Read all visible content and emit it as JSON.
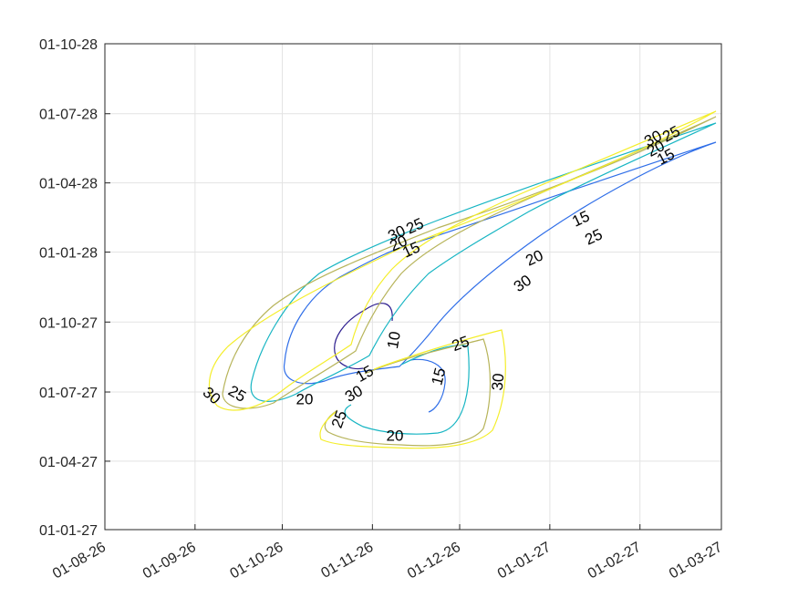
{
  "chart_data": {
    "type": "contour",
    "title": "",
    "xlabel": "",
    "ylabel": "",
    "grid": true,
    "legend": "none",
    "x_ticks": [
      "01-08-26",
      "01-09-26",
      "01-10-26",
      "01-11-26",
      "01-12-26",
      "01-01-27",
      "01-02-27",
      "01-03-27"
    ],
    "y_ticks": [
      "01-01-27",
      "01-04-27",
      "01-07-27",
      "01-10-27",
      "01-01-28",
      "01-04-28",
      "01-07-28",
      "01-10-28"
    ],
    "xlim": [
      "01-08-26",
      "01-03-27"
    ],
    "ylim": [
      "01-01-27",
      "01-10-28"
    ],
    "levels": [
      {
        "value": 10,
        "color": "#2d1e8f"
      },
      {
        "value": 15,
        "color": "#2f6ee8"
      },
      {
        "value": 20,
        "color": "#17b5c3"
      },
      {
        "value": 25,
        "color": "#b7b45a"
      },
      {
        "value": 30,
        "color": "#f4ee2a"
      }
    ],
    "contours": [
      {
        "level": 10,
        "lines": [
          [
            [
              "01-11-26",
              "01-10-27"
            ],
            [
              "01-11-26",
              "01-10-27"
            ],
            [
              "01-11-26",
              "01-09-27"
            ],
            [
              "01-11-26",
              "01-09-27"
            ],
            [
              "01-11-26",
              "01-08-27"
            ],
            [
              "01-11-26",
              "01-08-27"
            ],
            [
              "01-11-26",
              "01-08-27"
            ],
            [
              "01-11-26",
              "01-08-27"
            ],
            [
              "01-11-26",
              "01-09-27"
            ]
          ]
        ]
      },
      {
        "level": 15,
        "lines": [
          [
            [
              "01-03-27",
              "01-05-28"
            ],
            [
              "01-02-27",
              "01-04-28"
            ],
            [
              "01-01-27",
              "01-03-28"
            ],
            [
              "01-12-26",
              "01-02-28"
            ],
            [
              "01-11-26",
              "01-12-27"
            ],
            [
              "01-11-26",
              "01-09-27"
            ],
            [
              "01-10-26",
              "01-08-27"
            ],
            [
              "01-10-26",
              "01-07-27"
            ],
            [
              "01-10-26",
              "01-08-27"
            ],
            [
              "01-10-26",
              "01-10-27"
            ],
            [
              "01-11-26",
              "01-12-27"
            ],
            [
              "01-12-26",
              "01-02-28"
            ],
            [
              "01-01-27",
              "01-04-28"
            ],
            [
              "01-03-27",
              "01-06-28"
            ]
          ],
          [
            [
              "01-11-26",
              "01-08-27"
            ],
            [
              "01-12-26",
              "01-07-27"
            ],
            [
              "01-11-26",
              "01-07-27"
            ],
            [
              "01-11-26",
              "01-07-27"
            ]
          ]
        ]
      },
      {
        "level": 20,
        "lines": [
          [
            [
              "01-03-27",
              "01-04-28"
            ],
            [
              "01-02-27",
              "01-03-28"
            ],
            [
              "01-12-26",
              "01-01-28"
            ],
            [
              "01-11-26",
              "01-09-27"
            ],
            [
              "01-10-26",
              "01-07-27"
            ],
            [
              "01-10-26",
              "01-07-27"
            ],
            [
              "01-09-26",
              "01-08-27"
            ],
            [
              "01-10-26",
              "01-11-27"
            ],
            [
              "01-11-26",
              "01-01-28"
            ],
            [
              "01-12-26",
              "01-03-28"
            ],
            [
              "01-01-27",
              "01-04-28"
            ],
            [
              "01-03-27",
              "01-07-28"
            ]
          ],
          [
            [
              "01-11-26",
              "01-08-27"
            ],
            [
              "01-12-26",
              "01-08-27"
            ],
            [
              "01-12-26",
              "01-06-27"
            ],
            [
              "01-11-26",
              "01-06-27"
            ],
            [
              "01-11-26",
              "01-07-27"
            ]
          ]
        ]
      },
      {
        "level": 25,
        "lines": [
          [
            [
              "01-03-27",
              "01-04-28"
            ],
            [
              "01-02-27",
              "01-03-28"
            ],
            [
              "01-12-26",
              "01-12-27"
            ],
            [
              "01-11-26",
              "01-08-27"
            ],
            [
              "01-10-26",
              "01-07-27"
            ],
            [
              "01-09-26",
              "01-07-27"
            ],
            [
              "01-09-26",
              "01-09-27"
            ],
            [
              "01-10-26",
              "01-11-27"
            ],
            [
              "01-11-26",
              "01-01-28"
            ],
            [
              "01-12-26",
              "01-03-28"
            ],
            [
              "01-02-27",
              "01-06-28"
            ],
            [
              "01-03-27",
              "01-07-28"
            ]
          ],
          [
            [
              "01-11-26",
              "01-08-27"
            ],
            [
              "01-12-26",
              "01-08-27"
            ],
            [
              "01-12-26",
              "01-06-27"
            ],
            [
              "01-11-26",
              "01-06-27"
            ],
            [
              "01-11-26",
              "01-07-27"
            ]
          ]
        ]
      },
      {
        "level": 30,
        "lines": [
          [
            [
              "01-03-27",
              "01-04-28"
            ],
            [
              "01-01-27",
              "01-02-28"
            ],
            [
              "01-12-26",
              "01-12-27"
            ],
            [
              "01-11-26",
              "01-07-27"
            ],
            [
              "01-10-26",
              "01-07-27"
            ],
            [
              "01-09-26",
              "01-07-27"
            ],
            [
              "01-09-26",
              "01-10-27"
            ],
            [
              "01-10-26",
              "01-12-27"
            ],
            [
              "01-11-26",
              "01-02-28"
            ],
            [
              "01-01-27",
              "01-04-28"
            ],
            [
              "01-03-27",
              "01-07-28"
            ]
          ],
          [
            [
              "01-11-26",
              "01-08-27"
            ],
            [
              "01-12-26",
              "01-09-27"
            ],
            [
              "01-12-26",
              "01-06-27"
            ],
            [
              "01-11-26",
              "01-06-27"
            ],
            [
              "01-11-26",
              "01-07-27"
            ]
          ]
        ]
      }
    ],
    "contour_labels": [
      {
        "text": "30",
        "at": [
          "01-02-27",
          "01-07-28"
        ]
      },
      {
        "text": "25",
        "at": [
          "01-02-27",
          "01-07-28"
        ]
      },
      {
        "text": "20",
        "at": [
          "01-02-27",
          "01-06-28"
        ]
      },
      {
        "text": "15",
        "at": [
          "01-02-27",
          "01-06-28"
        ]
      },
      {
        "text": "30",
        "at": [
          "01-11-26",
          "01-01-28"
        ]
      },
      {
        "text": "25",
        "at": [
          "01-11-26",
          "01-01-28"
        ]
      },
      {
        "text": "20",
        "at": [
          "01-11-26",
          "01-01-28"
        ]
      },
      {
        "text": "15",
        "at": [
          "01-11-26",
          "01-01-28"
        ]
      },
      {
        "text": "15",
        "at": [
          "01-01-27",
          "01-02-28"
        ]
      },
      {
        "text": "25",
        "at": [
          "01-01-27",
          "01-01-28"
        ]
      },
      {
        "text": "20",
        "at": [
          "01-12-26",
          "01-12-27"
        ]
      },
      {
        "text": "30",
        "at": [
          "01-12-26",
          "01-11-27"
        ]
      },
      {
        "text": "10",
        "at": [
          "01-11-26",
          "01-09-27"
        ]
      },
      {
        "text": "25",
        "at": [
          "01-12-26",
          "01-08-27"
        ]
      },
      {
        "text": "15",
        "at": [
          "01-11-26",
          "01-07-27"
        ]
      },
      {
        "text": "15",
        "at": [
          "01-12-26",
          "01-07-27"
        ]
      },
      {
        "text": "30",
        "at": [
          "01-12-26",
          "01-07-27"
        ]
      },
      {
        "text": "30",
        "at": [
          "01-11-26",
          "01-07-27"
        ]
      },
      {
        "text": "25",
        "at": [
          "01-11-26",
          "01-06-27"
        ]
      },
      {
        "text": "20",
        "at": [
          "01-10-26",
          "01-07-27"
        ]
      },
      {
        "text": "25",
        "at": [
          "01-09-26",
          "01-07-27"
        ]
      },
      {
        "text": "30",
        "at": [
          "01-09-26",
          "01-07-27"
        ]
      },
      {
        "text": "20",
        "at": [
          "01-11-26",
          "01-06-27"
        ]
      }
    ]
  }
}
